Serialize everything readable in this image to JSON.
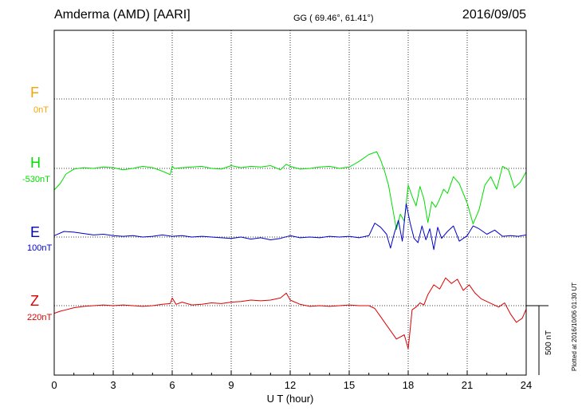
{
  "header": {
    "station": "Amderma (AMD)  [AARI]",
    "coords": "GG ( 69.46°,  61.41°)",
    "date": "2016/09/05"
  },
  "components": [
    {
      "name": "F",
      "baseline": "0nT",
      "color": "#f5a500"
    },
    {
      "name": "H",
      "baseline": "-530nT",
      "color": "#00dd00"
    },
    {
      "name": "E",
      "baseline": "100nT",
      "color": "#0000cc"
    },
    {
      "name": "Z",
      "baseline": "220nT",
      "color": "#dd0000"
    }
  ],
  "footer": {
    "plotted": "Plotted at 2016/10/06 01:30 UT",
    "scale_label": "500 nT"
  },
  "chart_data": {
    "type": "line",
    "xlabel": "U T (hour)",
    "xlim": [
      0,
      24
    ],
    "xticks": [
      0,
      3,
      6,
      9,
      12,
      15,
      18,
      21,
      24
    ],
    "xtick_labels": [
      "0",
      "3",
      "6",
      "9",
      "12",
      "15",
      "18",
      "21",
      "24"
    ],
    "units": "nT",
    "scale_bar_nT": 500,
    "grid": true,
    "series": [
      {
        "name": "H",
        "color": "#00dd00",
        "x": [
          0,
          0.3,
          0.6,
          1,
          1.5,
          2,
          2.5,
          3,
          3.5,
          4,
          4.5,
          5,
          5.5,
          5.9,
          6,
          6.1,
          6.5,
          7,
          7.5,
          8,
          8.5,
          9,
          9.5,
          10,
          10.5,
          11,
          11.5,
          11.8,
          12,
          12.5,
          13,
          13.5,
          14,
          14.5,
          15,
          15.5,
          16,
          16.4,
          16.6,
          16.8,
          17,
          17.2,
          17.4,
          17.6,
          17.8,
          18,
          18.2,
          18.4,
          18.6,
          18.8,
          19,
          19.2,
          19.4,
          19.6,
          19.8,
          20,
          20.3,
          20.6,
          21,
          21.3,
          21.6,
          21.9,
          22.2,
          22.5,
          22.8,
          23.1,
          23.4,
          23.7,
          24
        ],
        "y": [
          -155,
          -110,
          -40,
          -5,
          5,
          0,
          10,
          5,
          -10,
          0,
          15,
          5,
          -20,
          -45,
          15,
          0,
          5,
          10,
          15,
          0,
          -5,
          20,
          5,
          15,
          10,
          20,
          -10,
          30,
          15,
          -5,
          0,
          10,
          15,
          0,
          10,
          50,
          100,
          120,
          60,
          -20,
          -120,
          -280,
          -440,
          -330,
          -380,
          -120,
          -200,
          -270,
          -130,
          -220,
          -390,
          -240,
          -280,
          -220,
          -150,
          -180,
          -60,
          -110,
          -250,
          -400,
          -300,
          -120,
          -60,
          -150,
          15,
          -10,
          -140,
          -100,
          -25
        ]
      },
      {
        "name": "E",
        "color": "#0000cc",
        "x": [
          0,
          0.5,
          1,
          1.5,
          2,
          2.5,
          3,
          3.5,
          4,
          4.5,
          5,
          5.5,
          6,
          6.5,
          7,
          7.5,
          8,
          8.5,
          9,
          9.5,
          10,
          10.5,
          11,
          11.5,
          12,
          12.5,
          13,
          13.5,
          14,
          14.5,
          15,
          15.5,
          16,
          16.3,
          16.6,
          16.9,
          17.1,
          17.3,
          17.5,
          17.7,
          17.9,
          18.1,
          18.3,
          18.5,
          18.7,
          18.9,
          19.1,
          19.3,
          19.5,
          19.7,
          20,
          20.3,
          20.6,
          21,
          21.3,
          21.6,
          22,
          22.4,
          22.8,
          23.2,
          23.6,
          24
        ],
        "y": [
          10,
          40,
          35,
          25,
          15,
          20,
          10,
          5,
          10,
          0,
          5,
          15,
          5,
          10,
          0,
          5,
          0,
          -5,
          -10,
          0,
          -15,
          -5,
          -20,
          -10,
          10,
          -5,
          0,
          -5,
          5,
          0,
          5,
          -5,
          10,
          100,
          70,
          20,
          -80,
          30,
          120,
          -30,
          240,
          100,
          -10,
          -40,
          80,
          -20,
          60,
          -90,
          70,
          -10,
          40,
          80,
          -30,
          10,
          80,
          60,
          20,
          50,
          5,
          10,
          5,
          15
        ]
      },
      {
        "name": "Z",
        "color": "#dd0000",
        "x": [
          0,
          0.3,
          0.6,
          1,
          1.5,
          2,
          2.5,
          3,
          3.5,
          4,
          4.5,
          5,
          5.5,
          5.9,
          6,
          6.2,
          6.5,
          7,
          7.5,
          8,
          8.5,
          9,
          9.5,
          10,
          10.5,
          11,
          11.5,
          11.8,
          12,
          12.5,
          13,
          13.5,
          14,
          14.5,
          15,
          15.5,
          16,
          16.3,
          16.6,
          17,
          17.4,
          17.8,
          18,
          18.1,
          18.2,
          18.4,
          18.6,
          18.8,
          19,
          19.3,
          19.6,
          19.9,
          20.2,
          20.5,
          20.8,
          21.1,
          21.4,
          21.7,
          22,
          22.3,
          22.6,
          22.9,
          23.2,
          23.5,
          23.8,
          24
        ],
        "y": [
          -55,
          -40,
          -30,
          -15,
          -5,
          0,
          5,
          0,
          5,
          0,
          -5,
          0,
          10,
          15,
          55,
          10,
          25,
          5,
          10,
          20,
          15,
          25,
          30,
          40,
          35,
          40,
          55,
          90,
          40,
          10,
          -5,
          0,
          -5,
          0,
          5,
          0,
          0,
          -20,
          -80,
          -160,
          -240,
          -210,
          -310,
          -170,
          -30,
          -10,
          20,
          5,
          80,
          150,
          120,
          200,
          160,
          190,
          110,
          150,
          90,
          50,
          30,
          10,
          -10,
          20,
          -60,
          -120,
          -90,
          -25
        ]
      }
    ]
  }
}
